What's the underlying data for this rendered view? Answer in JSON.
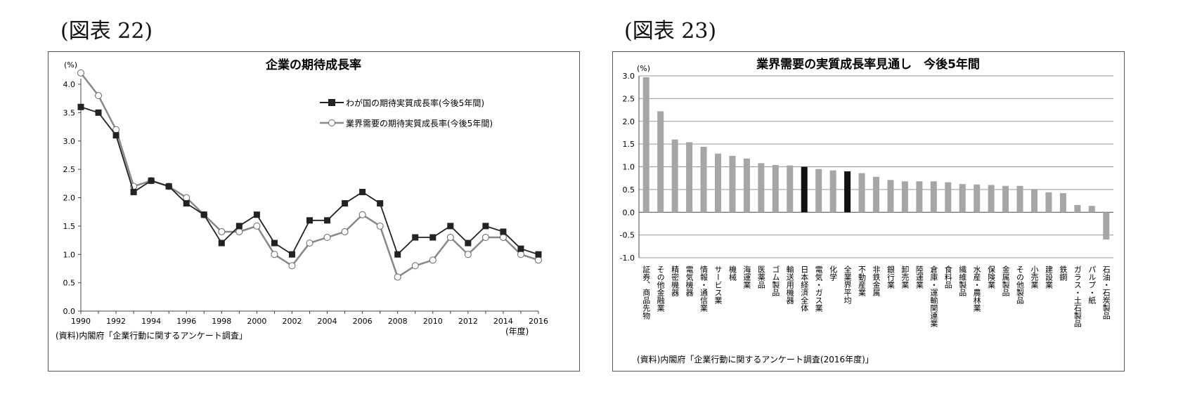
{
  "fig1": {
    "heading": "(図表 22)",
    "chart_data": {
      "type": "line",
      "title": "企業の期待成長率",
      "ylabel": "(%)",
      "xlabel": "(年度)",
      "ylim": [
        0,
        4.0
      ],
      "yticks": [
        "0.0",
        "0.5",
        "1.0",
        "1.5",
        "2.0",
        "2.5",
        "3.0",
        "3.5",
        "4.0"
      ],
      "xlim": [
        1990,
        2016
      ],
      "xticks": [
        "1990",
        "1992",
        "1994",
        "1996",
        "1998",
        "2000",
        "2002",
        "2004",
        "2006",
        "2008",
        "2010",
        "2012",
        "2014",
        "2016"
      ],
      "x": [
        1990,
        1991,
        1992,
        1993,
        1994,
        1995,
        1996,
        1997,
        1998,
        1999,
        2000,
        2001,
        2002,
        2003,
        2004,
        2005,
        2006,
        2007,
        2008,
        2009,
        2010,
        2011,
        2012,
        2013,
        2014,
        2015,
        2016
      ],
      "series": [
        {
          "name": "わが国の期待実質成長率(今後5年間)",
          "color": "#222222",
          "marker": "square",
          "values": [
            3.6,
            3.5,
            3.1,
            2.1,
            2.3,
            2.2,
            1.9,
            1.7,
            1.2,
            1.5,
            1.7,
            1.2,
            1.0,
            1.6,
            1.6,
            1.9,
            2.1,
            1.9,
            1.0,
            1.3,
            1.3,
            1.5,
            1.2,
            1.5,
            1.4,
            1.1,
            1.0
          ]
        },
        {
          "name": "業界需要の期待実質成長率(今後5年間)",
          "color": "#888888",
          "marker": "circle",
          "values": [
            4.2,
            3.8,
            3.2,
            2.2,
            2.3,
            2.2,
            2.0,
            1.7,
            1.4,
            1.4,
            1.5,
            1.0,
            0.8,
            1.2,
            1.3,
            1.4,
            1.7,
            1.5,
            0.6,
            0.8,
            0.9,
            1.3,
            1.0,
            1.3,
            1.3,
            1.0,
            0.9
          ]
        }
      ],
      "legend_position": "top-right",
      "grid": false,
      "source": "(資料)内閣府「企業行動に関するアンケート調査」"
    }
  },
  "fig2": {
    "heading": "(図表 23)",
    "chart_data": {
      "type": "bar",
      "title": "業界需要の実質成長率見通し　今後5年間",
      "ylabel": "(%)",
      "ylim": [
        -1.0,
        3.0
      ],
      "yticks": [
        "-1.0",
        "-0.5",
        "0.0",
        "0.5",
        "1.0",
        "1.5",
        "2.0",
        "2.5",
        "3.0"
      ],
      "grid": true,
      "bar_color": "#a6a6a6",
      "highlight_color": "#111111",
      "categories": [
        "証券、商品先物",
        "その他金融業",
        "精密機器",
        "電気機器",
        "情報・通信業",
        "サービス業",
        "機械",
        "海運業",
        "医薬品",
        "ゴム製品",
        "輸送用機器",
        "日本経済全体",
        "電気・ガス業",
        "化学",
        "全業界平均",
        "不動産業",
        "非鉄金属",
        "銀行業",
        "卸売業",
        "陸運業",
        "倉庫・運輸関連業",
        "食料品",
        "繊維製品",
        "水産・農林業",
        "保険業",
        "金属製品",
        "その他製品",
        "小売業",
        "建設業",
        "鉄鋼",
        "ガラス・土石製品",
        "パルプ・紙",
        "石油・石炭製品"
      ],
      "values": [
        2.97,
        2.22,
        1.6,
        1.54,
        1.44,
        1.29,
        1.24,
        1.18,
        1.08,
        1.04,
        1.03,
        1.0,
        0.95,
        0.92,
        0.9,
        0.86,
        0.78,
        0.71,
        0.68,
        0.68,
        0.68,
        0.66,
        0.62,
        0.61,
        0.6,
        0.58,
        0.58,
        0.51,
        0.44,
        0.42,
        0.16,
        0.14,
        -0.6
      ],
      "highlight": [
        false,
        false,
        false,
        false,
        false,
        false,
        false,
        false,
        false,
        false,
        false,
        true,
        false,
        false,
        true,
        false,
        false,
        false,
        false,
        false,
        false,
        false,
        false,
        false,
        false,
        false,
        false,
        false,
        false,
        false,
        false,
        false,
        false
      ],
      "source": "(資料)内閣府「企業行動に関するアンケート調査(2016年度)」"
    }
  }
}
